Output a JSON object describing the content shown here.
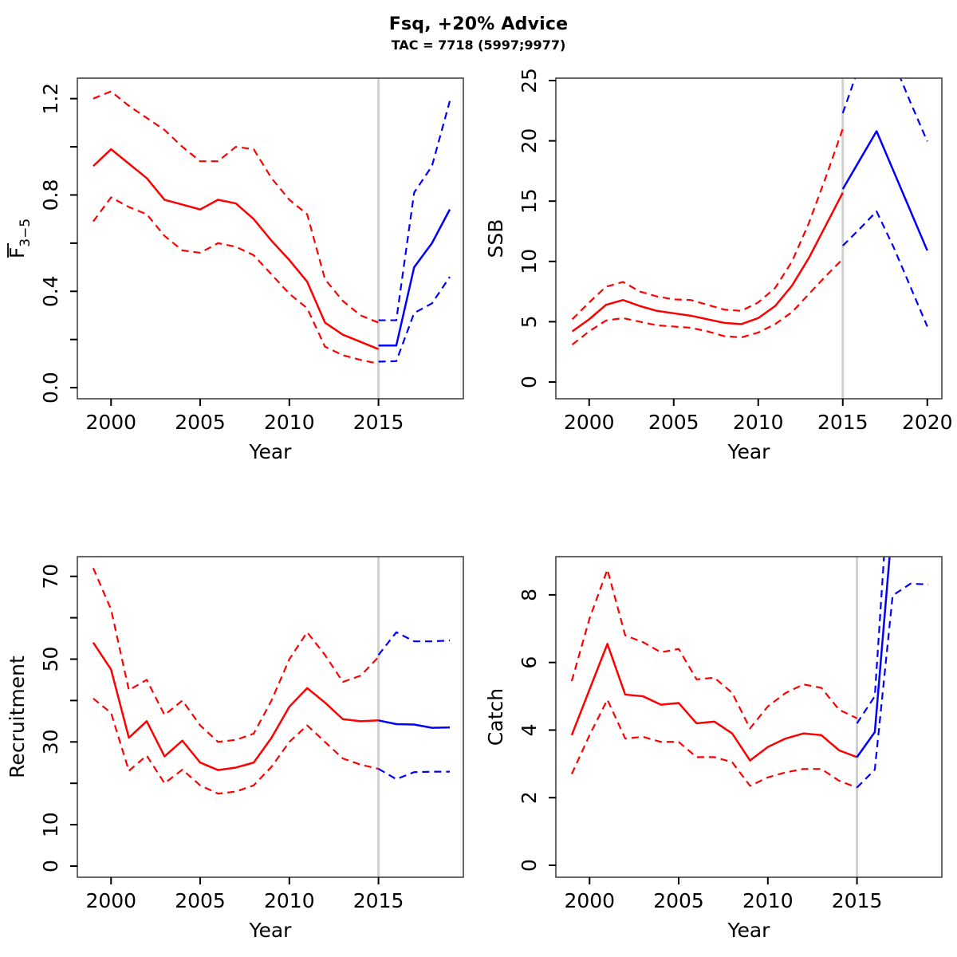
{
  "header": {
    "title": "Fsq, +20% Advice",
    "subtitle": "TAC = 7718 (5997;9977)"
  },
  "colors": {
    "historic": "#ff0000",
    "projection": "#0000ff",
    "vline": "#d0d0d0",
    "box": "#444444",
    "tick": "#000000"
  },
  "chart_data": [
    {
      "type": "line",
      "name": "fbar",
      "xlabel": "Year",
      "ylabel": {
        "main": "F",
        "sub": "3−5",
        "overline": true
      },
      "xlim": [
        1998.11,
        2019.76
      ],
      "ylim": [
        -0.046,
        1.285
      ],
      "xticks": {
        "at": [
          2000,
          2005,
          2010,
          2015
        ],
        "labels": [
          "2000",
          "2005",
          "2010",
          "2015"
        ]
      },
      "yticks": {
        "at": [
          0,
          0.2,
          0.4,
          0.6,
          0.8,
          1.0,
          1.2
        ],
        "labels": [
          "0.0",
          "",
          "0.4",
          "",
          "0.8",
          "",
          "1.2"
        ]
      },
      "vline": 2015,
      "legend": "none",
      "grid": false,
      "series": [
        {
          "name": "hist-upper",
          "role": "historic",
          "dash": true,
          "x_start": 1999,
          "values": [
            1.2,
            1.23,
            1.17,
            1.12,
            1.07,
            1.0,
            0.94,
            0.94,
            1.0,
            0.99,
            0.87,
            0.78,
            0.72,
            0.45,
            0.36,
            0.3,
            0.27
          ]
        },
        {
          "name": "hist-median",
          "role": "historic",
          "dash": false,
          "x_start": 1999,
          "values": [
            0.92,
            0.99,
            0.93,
            0.87,
            0.78,
            0.76,
            0.74,
            0.78,
            0.765,
            0.7,
            0.61,
            0.53,
            0.44,
            0.27,
            0.22,
            0.19,
            0.16
          ]
        },
        {
          "name": "hist-lower",
          "role": "historic",
          "dash": true,
          "x_start": 1999,
          "values": [
            0.69,
            0.79,
            0.75,
            0.72,
            0.63,
            0.57,
            0.56,
            0.6,
            0.585,
            0.55,
            0.47,
            0.39,
            0.33,
            0.17,
            0.135,
            0.115,
            0.1
          ]
        },
        {
          "name": "proj-upper",
          "role": "projection",
          "dash": true,
          "x_start": 2015,
          "values": [
            0.28,
            0.28,
            0.81,
            0.92,
            1.19
          ]
        },
        {
          "name": "proj-median",
          "role": "projection",
          "dash": false,
          "x_start": 2015,
          "values": [
            0.175,
            0.175,
            0.5,
            0.6,
            0.74
          ]
        },
        {
          "name": "proj-lower",
          "role": "projection",
          "dash": true,
          "x_start": 2015,
          "values": [
            0.108,
            0.11,
            0.31,
            0.35,
            0.46
          ]
        }
      ]
    },
    {
      "type": "line",
      "name": "ssb",
      "xlabel": "Year",
      "ylabel": {
        "main": "SSB"
      },
      "xlim": [
        1998.03,
        2020.86
      ],
      "ylim": [
        -1.39,
        25.2
      ],
      "xticks": {
        "at": [
          2000,
          2005,
          2010,
          2015,
          2020
        ],
        "labels": [
          "2000",
          "2005",
          "2010",
          "2015",
          "2020"
        ]
      },
      "yticks": {
        "at": [
          0,
          5,
          10,
          15,
          20,
          25
        ],
        "labels": [
          "0",
          "5",
          "10",
          "15",
          "20",
          "25"
        ]
      },
      "vline": 2015,
      "legend": "none",
      "grid": false,
      "series": [
        {
          "name": "hist-upper",
          "role": "historic",
          "dash": true,
          "x_start": 1999,
          "values": [
            5.2,
            6.6,
            7.9,
            8.3,
            7.5,
            7.1,
            6.85,
            6.8,
            6.4,
            6.0,
            5.9,
            6.6,
            7.8,
            10.0,
            13.2,
            17.0,
            21.0
          ]
        },
        {
          "name": "hist-median",
          "role": "historic",
          "dash": false,
          "x_start": 1999,
          "values": [
            4.2,
            5.2,
            6.4,
            6.8,
            6.3,
            5.9,
            5.7,
            5.5,
            5.2,
            4.9,
            4.8,
            5.3,
            6.3,
            8.0,
            10.3,
            13.0,
            15.7
          ]
        },
        {
          "name": "hist-lower",
          "role": "historic",
          "dash": true,
          "x_start": 1999,
          "values": [
            3.1,
            4.2,
            5.1,
            5.3,
            5.0,
            4.7,
            4.6,
            4.5,
            4.2,
            3.8,
            3.7,
            4.1,
            4.8,
            5.8,
            7.3,
            8.8,
            10.2
          ]
        },
        {
          "name": "proj-upper",
          "role": "projection",
          "dash": true,
          "x_start": 2015,
          "values": [
            22.3,
            26.3,
            28.2,
            26.6,
            23.2,
            19.95
          ]
        },
        {
          "name": "proj-median",
          "role": "projection",
          "dash": false,
          "x_start": 2015,
          "values": [
            16.0,
            18.4,
            20.8,
            17.5,
            14.2,
            10.9
          ]
        },
        {
          "name": "proj-lower",
          "role": "projection",
          "dash": true,
          "x_start": 2015,
          "values": [
            11.3,
            12.7,
            14.15,
            11.2,
            7.9,
            4.6
          ]
        }
      ]
    },
    {
      "type": "line",
      "name": "recruitment",
      "xlabel": "Year",
      "ylabel": {
        "main": "Recruitment"
      },
      "xlim": [
        1998.11,
        2019.76
      ],
      "ylim": [
        -2.7,
        74.76
      ],
      "xticks": {
        "at": [
          2000,
          2005,
          2010,
          2015
        ],
        "labels": [
          "2000",
          "2005",
          "2010",
          "2015"
        ]
      },
      "yticks": {
        "at": [
          0,
          10,
          20,
          30,
          40,
          50,
          60,
          70
        ],
        "labels": [
          "0",
          "10",
          "",
          "30",
          "",
          "50",
          "",
          "70"
        ]
      },
      "vline": 2015,
      "legend": "none",
      "grid": false,
      "series": [
        {
          "name": "hist-upper",
          "role": "historic",
          "dash": true,
          "x_start": 1999,
          "values": [
            72,
            62,
            42.5,
            45,
            36.5,
            40,
            34,
            30,
            30.5,
            32,
            40,
            50,
            56.5,
            51,
            44.5,
            46,
            50.5
          ]
        },
        {
          "name": "hist-median",
          "role": "historic",
          "dash": false,
          "x_start": 1999,
          "values": [
            54,
            47.5,
            31,
            35,
            26.5,
            30.3,
            25,
            23.2,
            23.8,
            25,
            31,
            38.5,
            43,
            39.5,
            35.5,
            35,
            35.2
          ]
        },
        {
          "name": "hist-lower",
          "role": "historic",
          "dash": true,
          "x_start": 1999,
          "values": [
            40.5,
            37,
            23,
            26.7,
            20,
            23.3,
            19.5,
            17.5,
            18,
            19.5,
            24,
            30,
            34,
            30,
            26,
            24.5,
            23.5
          ]
        },
        {
          "name": "proj-upper",
          "role": "projection",
          "dash": true,
          "x_start": 2015,
          "values": [
            51,
            56.5,
            54.3,
            54.3,
            54.5
          ]
        },
        {
          "name": "proj-median",
          "role": "projection",
          "dash": false,
          "x_start": 2015,
          "values": [
            35.2,
            34.3,
            34.2,
            33.4,
            33.5
          ]
        },
        {
          "name": "proj-lower",
          "role": "projection",
          "dash": true,
          "x_start": 2015,
          "values": [
            23.5,
            21.0,
            22.7,
            22.8,
            22.8
          ]
        }
      ]
    },
    {
      "type": "line",
      "name": "catch",
      "xlabel": "Year",
      "ylabel": {
        "main": "Catch"
      },
      "xlim": [
        1998.11,
        2019.76
      ],
      "ylim": [
        -0.354,
        9.13
      ],
      "xticks": {
        "at": [
          2000,
          2005,
          2010,
          2015
        ],
        "labels": [
          "2000",
          "2005",
          "2010",
          "2015"
        ]
      },
      "yticks": {
        "at": [
          0,
          2,
          4,
          6,
          8
        ],
        "labels": [
          "0",
          "2",
          "4",
          "6",
          "8"
        ]
      },
      "vline": 2015,
      "legend": "none",
      "grid": false,
      "series": [
        {
          "name": "hist-upper",
          "role": "historic",
          "dash": true,
          "x_start": 1999,
          "values": [
            5.45,
            7.3,
            8.75,
            6.8,
            6.6,
            6.3,
            6.4,
            5.5,
            5.55,
            5.1,
            4.05,
            4.7,
            5.1,
            5.35,
            5.25,
            4.6,
            4.35
          ]
        },
        {
          "name": "hist-median",
          "role": "historic",
          "dash": false,
          "x_start": 1999,
          "values": [
            3.85,
            5.2,
            6.55,
            5.05,
            5.0,
            4.75,
            4.8,
            4.2,
            4.25,
            3.9,
            3.1,
            3.5,
            3.75,
            3.9,
            3.85,
            3.4,
            3.2
          ]
        },
        {
          "name": "hist-lower",
          "role": "historic",
          "dash": true,
          "x_start": 1999,
          "values": [
            2.7,
            3.85,
            4.9,
            3.75,
            3.8,
            3.65,
            3.65,
            3.2,
            3.2,
            3.05,
            2.35,
            2.6,
            2.75,
            2.85,
            2.85,
            2.5,
            2.3
          ]
        },
        {
          "name": "proj-upper",
          "role": "projection",
          "dash": true,
          "x_start": 2015,
          "values": [
            4.2,
            5.0,
            13.0,
            14.0,
            14.0
          ]
        },
        {
          "name": "proj-median",
          "role": "projection",
          "dash": false,
          "x_start": 2015,
          "values": [
            3.2,
            3.94,
            10.2,
            11.5,
            11.5
          ]
        },
        {
          "name": "proj-lower",
          "role": "projection",
          "dash": true,
          "x_start": 2015,
          "values": [
            2.3,
            2.83,
            7.98,
            8.33,
            8.31
          ]
        }
      ]
    }
  ]
}
